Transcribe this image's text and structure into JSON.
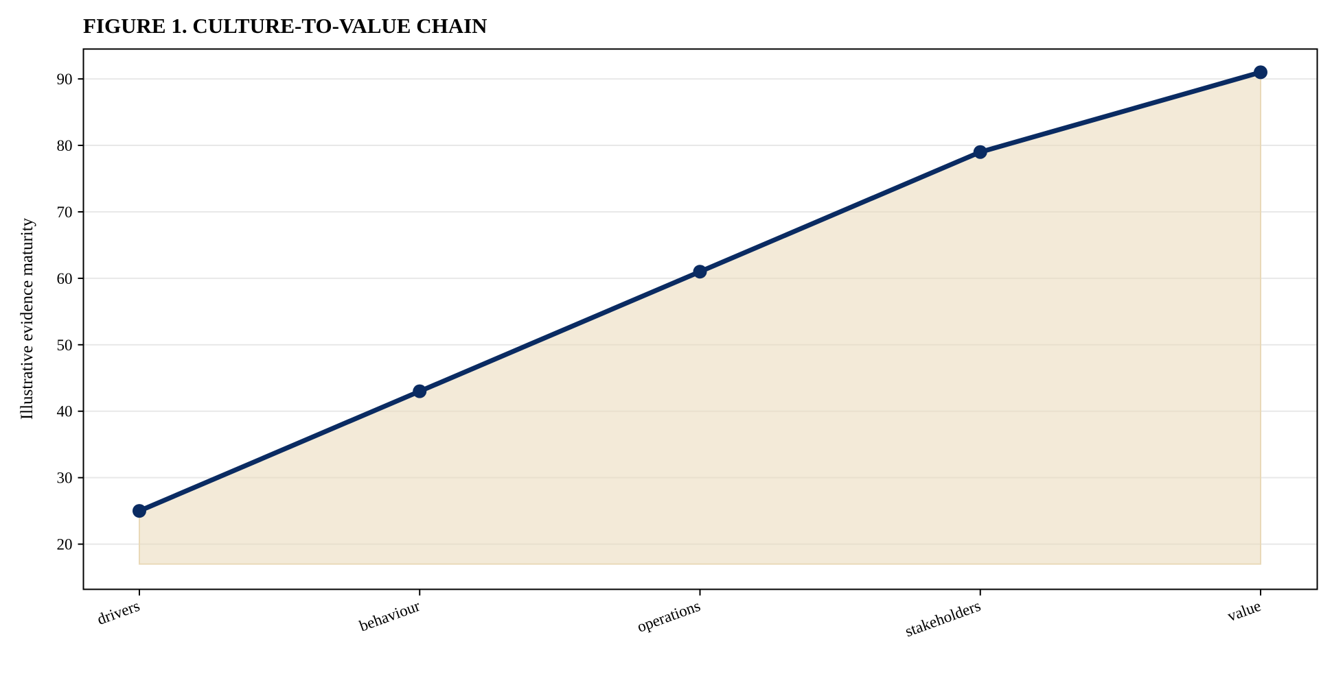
{
  "chart_data": {
    "type": "area",
    "title": "FIGURE 1. CULTURE-TO-VALUE CHAIN",
    "xlabel": "",
    "ylabel": "Illustrative evidence maturity",
    "categories": [
      "drivers",
      "behaviour",
      "operations",
      "stakeholders",
      "value"
    ],
    "series": [
      {
        "values": [
          25,
          43,
          61,
          79,
          91
        ]
      }
    ],
    "fill_baseline": 17,
    "ylim": [
      13.2,
      94.5
    ],
    "yticks": [
      20,
      30,
      40,
      50,
      60,
      70,
      80,
      90
    ],
    "grid": {
      "y": true,
      "x": false
    },
    "legend": "none",
    "colors": {
      "line": "#0a2b62",
      "fill": "#e9d9b8",
      "grid": "#e8e8e8",
      "axis": "#000000"
    }
  }
}
